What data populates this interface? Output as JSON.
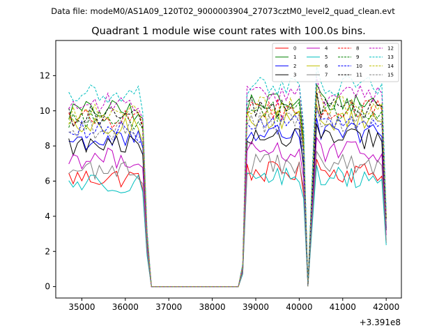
{
  "chart_data": {
    "type": "line",
    "suptitle": "Data file: modeM0/AS1A09_120T02_9000003904_27073cztM0_level2_quad_clean.evt",
    "title": "Quadrant 1 module wise count rates with 100.0s bins.",
    "xlabel": "",
    "ylabel": "",
    "x_offset_label": "+3.391e8",
    "xlim": [
      34400,
      42350
    ],
    "ylim": [
      -0.65,
      14.0
    ],
    "xticks": [
      35000,
      36000,
      37000,
      38000,
      39000,
      40000,
      41000,
      42000
    ],
    "xtick_labels": [
      "35000",
      "36000",
      "37000",
      "38000",
      "39000",
      "40000",
      "41000",
      "42000"
    ],
    "yticks": [
      0,
      2,
      4,
      6,
      8,
      10,
      12
    ],
    "ytick_labels": [
      "0",
      "2",
      "4",
      "6",
      "8",
      "10",
      "12"
    ],
    "legend_position": "upper-right",
    "legend_columns": 4,
    "x_range_actual": [
      34700,
      42000
    ],
    "bin_size": 100,
    "zero_gap": [
      36600,
      38600
    ],
    "dip_points": [
      40200
    ],
    "series": [
      {
        "name": "0",
        "color": "#ff0000",
        "dash": "solid",
        "level": 6.2
      },
      {
        "name": "1",
        "color": "#008000",
        "dash": "solid",
        "level": 10.0
      },
      {
        "name": "2",
        "color": "#0000ff",
        "dash": "solid",
        "level": 8.3
      },
      {
        "name": "3",
        "color": "#000000",
        "dash": "solid",
        "level": 8.0
      },
      {
        "name": "4",
        "color": "#bf00bf",
        "dash": "solid",
        "level": 7.3
      },
      {
        "name": "5",
        "color": "#00bfbf",
        "dash": "solid",
        "level": 5.9
      },
      {
        "name": "6",
        "color": "#bfbf00",
        "dash": "solid",
        "level": 9.0
      },
      {
        "name": "7",
        "color": "#808080",
        "dash": "solid",
        "level": 6.6
      },
      {
        "name": "8",
        "color": "#ff0000",
        "dash": "dashed",
        "level": 9.6
      },
      {
        "name": "9",
        "color": "#008000",
        "dash": "dashed",
        "level": 9.5
      },
      {
        "name": "10",
        "color": "#0000ff",
        "dash": "dashed",
        "level": 8.8
      },
      {
        "name": "11",
        "color": "#000000",
        "dash": "dashed",
        "level": 9.7
      },
      {
        "name": "12",
        "color": "#bf00bf",
        "dash": "dashed",
        "level": 10.4
      },
      {
        "name": "13",
        "color": "#00bfbf",
        "dash": "dashed",
        "level": 10.9
      },
      {
        "name": "14",
        "color": "#bfbf00",
        "dash": "dashed",
        "level": 9.8
      },
      {
        "name": "15",
        "color": "#808080",
        "dash": "dashed",
        "level": 8.9
      }
    ]
  }
}
